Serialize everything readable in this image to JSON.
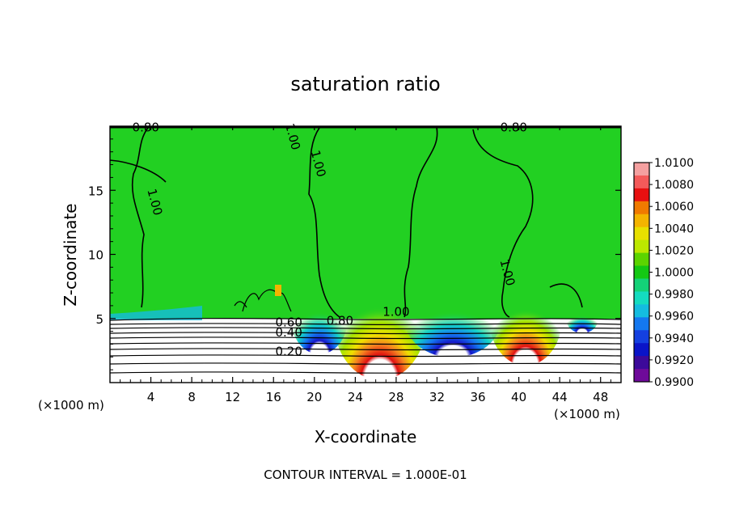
{
  "chart_data": {
    "type": "heatmap",
    "title": "saturation ratio",
    "xlabel": "X-coordinate",
    "ylabel": "Z-coordinate",
    "x_unit": "(×1000 m)",
    "x_unit_right": "(×1000 m)",
    "x_ticks": [
      4,
      8,
      12,
      16,
      20,
      24,
      28,
      32,
      36,
      40,
      44,
      48
    ],
    "xlim": [
      0,
      50
    ],
    "y_ticks": [
      5,
      10,
      15
    ],
    "ylim": [
      0,
      20
    ],
    "footer": "CONTOUR INTERVAL = 1.000E-01",
    "colorbar": {
      "labels": [
        "1.0100",
        "1.0080",
        "1.0060",
        "1.0040",
        "1.0020",
        "1.0000",
        "0.9980",
        "0.9960",
        "0.9940",
        "0.9920",
        "0.9900"
      ],
      "colors": [
        "#f4a0a0",
        "#f45a5a",
        "#e81010",
        "#f07a00",
        "#f4b400",
        "#e8e000",
        "#bde800",
        "#5cd400",
        "#14c814",
        "#14d278",
        "#14dcc0",
        "#14bce0",
        "#1478f0",
        "#1440e0",
        "#0a14c8",
        "#3c0a9a",
        "#6e0a9a"
      ]
    },
    "contour_labels": [
      {
        "text": "0.80",
        "x": 3.5,
        "y": 19.6
      },
      {
        "text": "1.00",
        "x": 17.5,
        "y": 19.1
      },
      {
        "text": "0.80",
        "x": 39.5,
        "y": 19.6
      },
      {
        "text": "1.00",
        "x": 20.0,
        "y": 17.0
      },
      {
        "text": "1.00",
        "x": 4.0,
        "y": 14.0
      },
      {
        "text": "1.00",
        "x": 38.5,
        "y": 8.5
      },
      {
        "text": "1.00",
        "x": 28.0,
        "y": 5.2
      },
      {
        "text": "0.60",
        "x": 17.5,
        "y": 4.4
      },
      {
        "text": "0.80",
        "x": 22.5,
        "y": 4.5
      },
      {
        "text": "0.40",
        "x": 17.5,
        "y": 3.6
      },
      {
        "text": "0.20",
        "x": 17.5,
        "y": 2.1
      }
    ]
  },
  "colors": {
    "field_green": "#22d022",
    "grid_ink": "#000000"
  }
}
